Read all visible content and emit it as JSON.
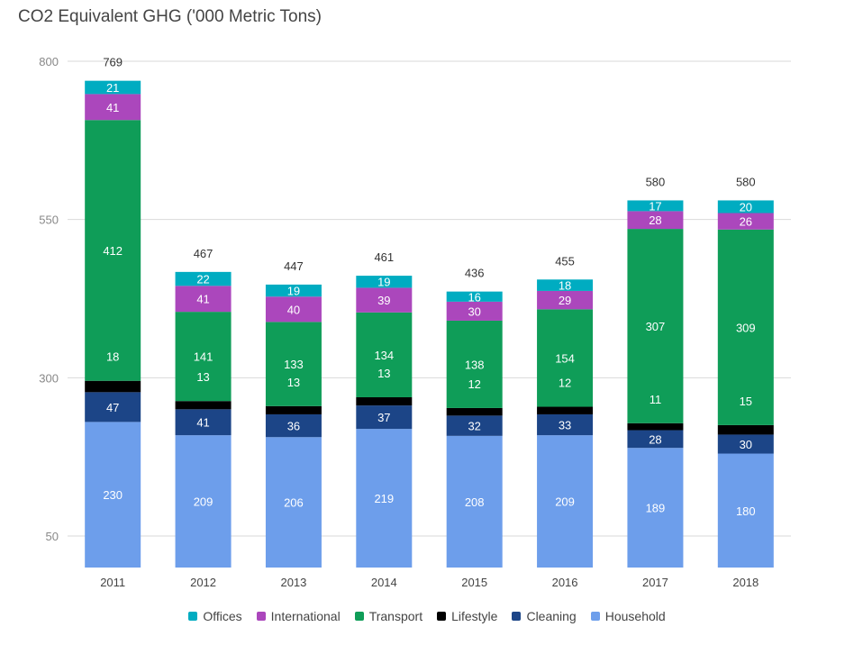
{
  "chart_data": {
    "type": "bar",
    "stacked": true,
    "title": "CO2 Equivalent GHG ('000 Metric Tons)",
    "xlabel": "",
    "ylabel": "",
    "categories": [
      "2011",
      "2012",
      "2013",
      "2014",
      "2015",
      "2016",
      "2017",
      "2018"
    ],
    "yticks": [
      50,
      300,
      550,
      800
    ],
    "ylim": [
      0,
      800
    ],
    "grid": true,
    "legend_position": "bottom",
    "series": [
      {
        "name": "Household",
        "color": "#6d9eeb",
        "label_color": "#ffffff",
        "values": [
          230,
          209,
          206,
          219,
          208,
          209,
          189,
          180
        ]
      },
      {
        "name": "Cleaning",
        "color": "#1c4587",
        "label_color": "#ffffff",
        "values": [
          47,
          41,
          36,
          37,
          32,
          33,
          28,
          30
        ]
      },
      {
        "name": "Lifestyle",
        "color": "#000000",
        "label_color": "#ffffff",
        "values": [
          18,
          13,
          13,
          13,
          12,
          12,
          11,
          15
        ]
      },
      {
        "name": "Transport",
        "color": "#0f9d58",
        "label_color": "#ffffff",
        "values": [
          412,
          141,
          133,
          134,
          138,
          154,
          307,
          309
        ]
      },
      {
        "name": "International",
        "color": "#ab47bc",
        "label_color": "#ffffff",
        "values": [
          41,
          41,
          40,
          39,
          30,
          29,
          28,
          26
        ]
      },
      {
        "name": "Offices",
        "color": "#00acc1",
        "label_color": "#ffffff",
        "values": [
          21,
          22,
          19,
          19,
          16,
          18,
          17,
          20
        ]
      }
    ],
    "totals": [
      "769",
      "467",
      "447",
      "461",
      "436",
      "455",
      "580",
      "580"
    ],
    "legend_order": [
      "Offices",
      "International",
      "Transport",
      "Lifestyle",
      "Cleaning",
      "Household"
    ]
  }
}
